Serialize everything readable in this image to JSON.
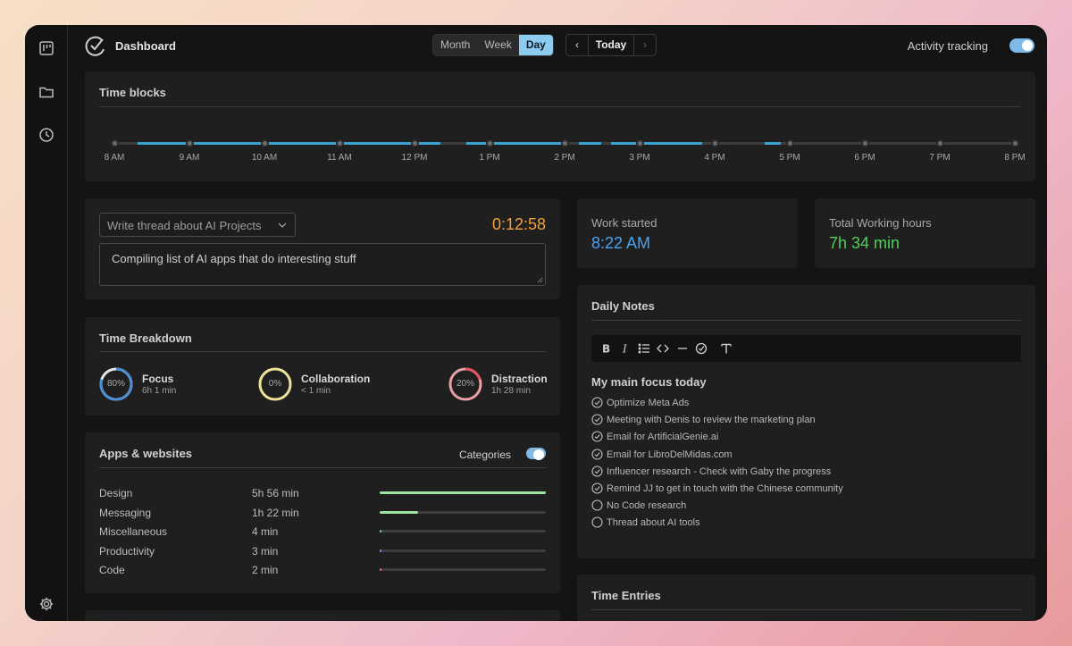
{
  "header": {
    "title": "Dashboard",
    "views": [
      "Month",
      "Week",
      "Day"
    ],
    "active_view": "Day",
    "today_label": "Today",
    "prev_icon": "chevron-left-icon",
    "next_icon": "chevron-right-icon",
    "tracking_label": "Activity tracking",
    "tracking_on": true
  },
  "sidebar": {
    "icons": [
      "board-icon",
      "folder-icon",
      "clock-icon",
      "gear-icon"
    ]
  },
  "time_blocks": {
    "title": "Time blocks",
    "hours": [
      "8 AM",
      "9 AM",
      "10 AM",
      "11 AM",
      "12 PM",
      "1 PM",
      "2 PM",
      "3 PM",
      "4 PM",
      "5 PM",
      "6 PM",
      "7 PM",
      "8 PM"
    ]
  },
  "task": {
    "selected": "Write thread about AI Projects",
    "timer": "0:12:58",
    "note": "Compiling list of AI apps that do interesting stuff"
  },
  "stats": {
    "work_started_label": "Work started",
    "work_started_value": "8:22 AM",
    "total_label": "Total Working hours",
    "total_value": "7h 34 min"
  },
  "breakdown": {
    "title": "Time Breakdown",
    "items": [
      {
        "name": "Focus",
        "percent": "80%",
        "time": "6h 1 min",
        "fraction": 0.8,
        "color": "#4a8fd6"
      },
      {
        "name": "Collaboration",
        "percent": "0%",
        "time": "< 1 min",
        "fraction": 0.0,
        "color": "#efe29a"
      },
      {
        "name": "Distraction",
        "percent": "20%",
        "time": "1h 28 min",
        "fraction": 0.2,
        "color": "#e8a0a6"
      }
    ]
  },
  "apps": {
    "title": "Apps & websites",
    "categories_label": "Categories",
    "categories_on": true,
    "rows": [
      {
        "name": "Design",
        "time": "5h 56 min",
        "fraction": 1.0,
        "color": "#9ee6a0"
      },
      {
        "name": "Messaging",
        "time": "1h 22 min",
        "fraction": 0.23,
        "color": "#9ee6a0"
      },
      {
        "name": "Miscellaneous",
        "time": "4 min",
        "fraction": 0.012,
        "color": "#6bcf8c"
      },
      {
        "name": "Productivity",
        "time": "3 min",
        "fraction": 0.01,
        "color": "#6b8cf0"
      },
      {
        "name": "Code",
        "time": "2 min",
        "fraction": 0.008,
        "color": "#e85a8a"
      }
    ]
  },
  "notes": {
    "title": "Daily Notes",
    "toolbar": [
      "bold-icon",
      "italic-icon",
      "list-icon",
      "code-icon",
      "divider-icon",
      "check-icon",
      "text-icon"
    ],
    "heading": "My main focus today",
    "todos": [
      {
        "text": "Optimize Meta Ads",
        "done": true
      },
      {
        "text": "Meeting with Denis to review the marketing plan",
        "done": true
      },
      {
        "text": "Email for ArtificialGenie.ai",
        "done": true
      },
      {
        "text": "Email for LibroDelMidas.com",
        "done": true
      },
      {
        "text": "Influencer research - Check with Gaby the progress",
        "done": true
      },
      {
        "text": "Remind JJ to get in touch with the Chinese community",
        "done": true
      },
      {
        "text": "No Code research",
        "done": false
      },
      {
        "text": "Thread about AI tools",
        "done": false
      }
    ]
  },
  "entries": {
    "title": "Time Entries"
  },
  "colors": {
    "accent": "#8ecbf0",
    "timer": "#f2a13c",
    "work_started": "#4aa3f0",
    "total_hours": "#4cd05a",
    "timeline": "#3aa3d3"
  }
}
